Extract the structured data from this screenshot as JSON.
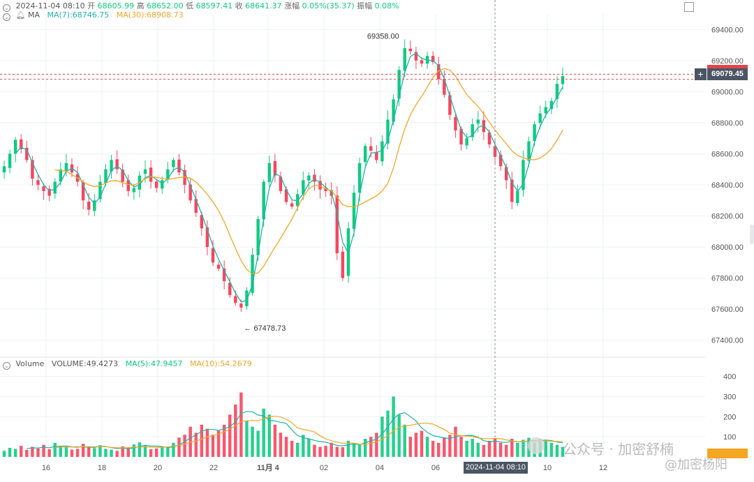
{
  "header": {
    "datetime": "2024-11-04 08:10",
    "open_label": "开",
    "open": "68605.99",
    "high_label": "高",
    "high": "68652.00",
    "low_label": "低",
    "low": "68597.41",
    "close_label": "收",
    "close": "68641.37",
    "change_label": "涨幅",
    "change": "0.05%(35.37)",
    "amp_label": "振幅",
    "amp": "0.08%"
  },
  "ma_row": {
    "title": "MA",
    "ma7_text": "MA(7):68746.75",
    "ma30_text": "MA(30):68908.73"
  },
  "vol_row": {
    "title": "Volume",
    "volume_text": "VOLUME:49.4273",
    "ma5_text": "MA(5):47.9457",
    "ma10_text": "MA(10):54.2679"
  },
  "current_price_tag": "69079.45",
  "crosshair_time": "2024-11-04 08:10",
  "watermark": {
    "line1": "公众号 · 加密舒楠",
    "line2": "@加密杨阳"
  },
  "colors": {
    "up": "#0ecb81",
    "down": "#f6465d",
    "ma7": "#20b2aa",
    "ma30": "#f5a623",
    "grid": "#eef0f3",
    "axis_text": "#555555"
  },
  "chart_data": [
    {
      "type": "candlestick",
      "title": "",
      "ylim": [
        67300,
        69500
      ],
      "yticks": [
        67400,
        67600,
        67800,
        68000,
        68200,
        68400,
        68600,
        68800,
        69000,
        69200,
        69400
      ],
      "ytick_labels": [
        "67400.00",
        "67600.00",
        "67800.00",
        "68000.00",
        "68200.00",
        "68400.00",
        "68600.00",
        "68800.00",
        "69000.00",
        "69200.00",
        "69400.00"
      ],
      "xticks": [
        "16",
        "18",
        "20",
        "22",
        "11月 4",
        "02",
        "04",
        "06",
        "08",
        "10",
        "12"
      ],
      "annotations": [
        {
          "text": "69358.00",
          "value": 69358,
          "label": "high"
        },
        {
          "text": "← 67478.73",
          "value": 67478.73,
          "label": "low"
        }
      ],
      "series": [
        {
          "name": "MA(7)",
          "current": 68746.75
        },
        {
          "name": "MA(30)",
          "current": 68908.73
        }
      ],
      "close": [
        68520,
        68600,
        68690,
        68630,
        68560,
        68440,
        68400,
        68360,
        68330,
        68420,
        68500,
        68540,
        68480,
        68420,
        68300,
        68240,
        68300,
        68420,
        68500,
        68560,
        68500,
        68420,
        68360,
        68380,
        68460,
        68500,
        68420,
        68380,
        68430,
        68500,
        68560,
        68480,
        68400,
        68300,
        68220,
        68120,
        68000,
        67900,
        67860,
        67780,
        67690,
        67640,
        67610,
        67720,
        67950,
        68180,
        68420,
        68540,
        68460,
        68360,
        68290,
        68260,
        68340,
        68430,
        68460,
        68420,
        68370,
        68360,
        68330,
        67960,
        67800,
        68120,
        68350,
        68540,
        68650,
        68620,
        68560,
        68680,
        68820,
        68950,
        69140,
        69280,
        69260,
        69200,
        69180,
        69230,
        69190,
        69080,
        68980,
        68850,
        68750,
        68660,
        68700,
        68790,
        68820,
        68740,
        68660,
        68580,
        68520,
        68430,
        68290,
        68360,
        68560,
        68680,
        68790,
        68860,
        68900,
        68940,
        69050,
        69100
      ]
    },
    {
      "type": "bar",
      "title": "",
      "ylim": [
        0,
        440
      ],
      "yticks": [
        100,
        200,
        300,
        400
      ],
      "ytick_labels": [
        "100",
        "200",
        "300",
        "400"
      ],
      "series": [
        {
          "name": "VOLUME",
          "current": 49.4273
        },
        {
          "name": "MA(5)",
          "current": 47.9457
        },
        {
          "name": "MA(10)",
          "current": 54.2679
        }
      ],
      "values": [
        30,
        45,
        40,
        55,
        35,
        50,
        42,
        60,
        38,
        70,
        55,
        48,
        36,
        40,
        65,
        52,
        44,
        58,
        40,
        36,
        30,
        52,
        45,
        62,
        72,
        55,
        38,
        42,
        50,
        48,
        70,
        96,
        110,
        150,
        120,
        160,
        140,
        110,
        130,
        160,
        210,
        260,
        320,
        180,
        150,
        130,
        240,
        210,
        160,
        120,
        100,
        80,
        70,
        110,
        90,
        60,
        50,
        55,
        70,
        50,
        48,
        80,
        70,
        60,
        90,
        100,
        120,
        200,
        230,
        300,
        210,
        160,
        100,
        120,
        130,
        100,
        80,
        70,
        95,
        110,
        150,
        100,
        80,
        90,
        70,
        60,
        80,
        90,
        70,
        60,
        90,
        70,
        85,
        95,
        70,
        90,
        80,
        70,
        60,
        50
      ]
    }
  ]
}
